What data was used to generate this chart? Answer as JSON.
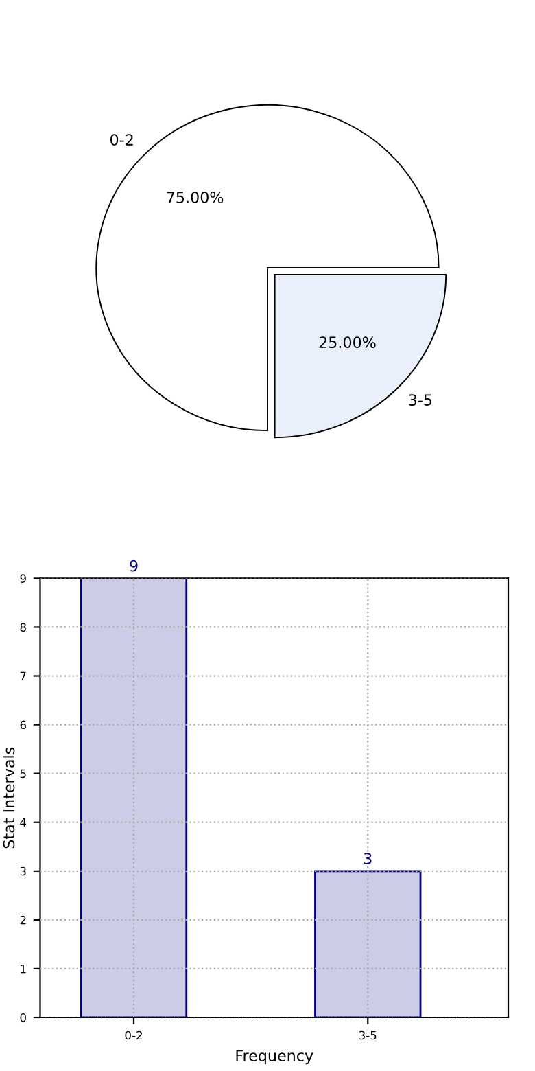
{
  "chart_data": [
    {
      "type": "pie",
      "categories": [
        "0-2",
        "3-5"
      ],
      "values": [
        75,
        25
      ],
      "value_labels": [
        "75.00%",
        "25.00%"
      ],
      "colors": [
        "#ffffff",
        "#eaf0fb"
      ]
    },
    {
      "type": "bar",
      "categories": [
        "0-2",
        "3-5"
      ],
      "values": [
        9,
        3
      ],
      "color": "#ccccE6",
      "xlabel": "Frequency",
      "ylabel": "Stat Intervals",
      "ylim": [
        0,
        9
      ],
      "yticks": [
        0,
        1,
        2,
        3,
        4,
        5,
        6,
        7,
        8,
        9
      ],
      "grid": true,
      "data_labels": true
    }
  ]
}
